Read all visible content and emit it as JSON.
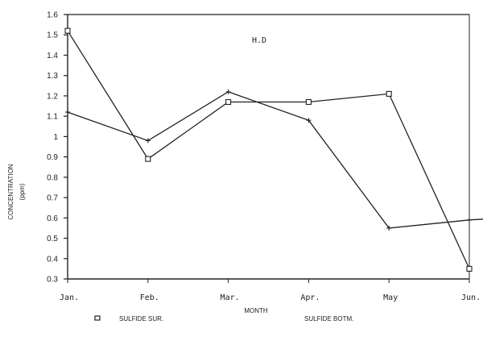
{
  "chart_data": {
    "type": "line",
    "title": "H.D",
    "xlabel": "MONTH",
    "ylabel": "CONCENTRATION",
    "ylabel_unit": "(ppm)",
    "categories": [
      "Jan.",
      "Feb.",
      "Mar.",
      "Apr.",
      "May",
      "Jun."
    ],
    "ylim": [
      0.3,
      1.6
    ],
    "yticks": [
      1.6,
      1.5,
      1.4,
      1.3,
      1.2,
      1.1,
      1,
      0.9,
      0.8,
      0.7,
      0.6,
      0.5,
      0.4,
      0.3
    ],
    "ytick_labels": [
      "1.6",
      "1.5",
      "1.4",
      "1.3",
      "1.2",
      "1.1",
      "1",
      "0.9",
      "0.8",
      "0.7",
      "0.6",
      "0.5",
      "0.4",
      "0.3"
    ],
    "grid": false,
    "legend_position": "bottom",
    "series": [
      {
        "name": "SULFIDE SUR.",
        "marker": "square",
        "values": [
          1.52,
          0.89,
          1.17,
          1.17,
          1.21,
          0.35
        ]
      },
      {
        "name": "SULFIDE BOTM.",
        "marker": "plus",
        "values": [
          1.12,
          0.98,
          1.22,
          1.08,
          0.55,
          0.59
        ]
      }
    ]
  }
}
